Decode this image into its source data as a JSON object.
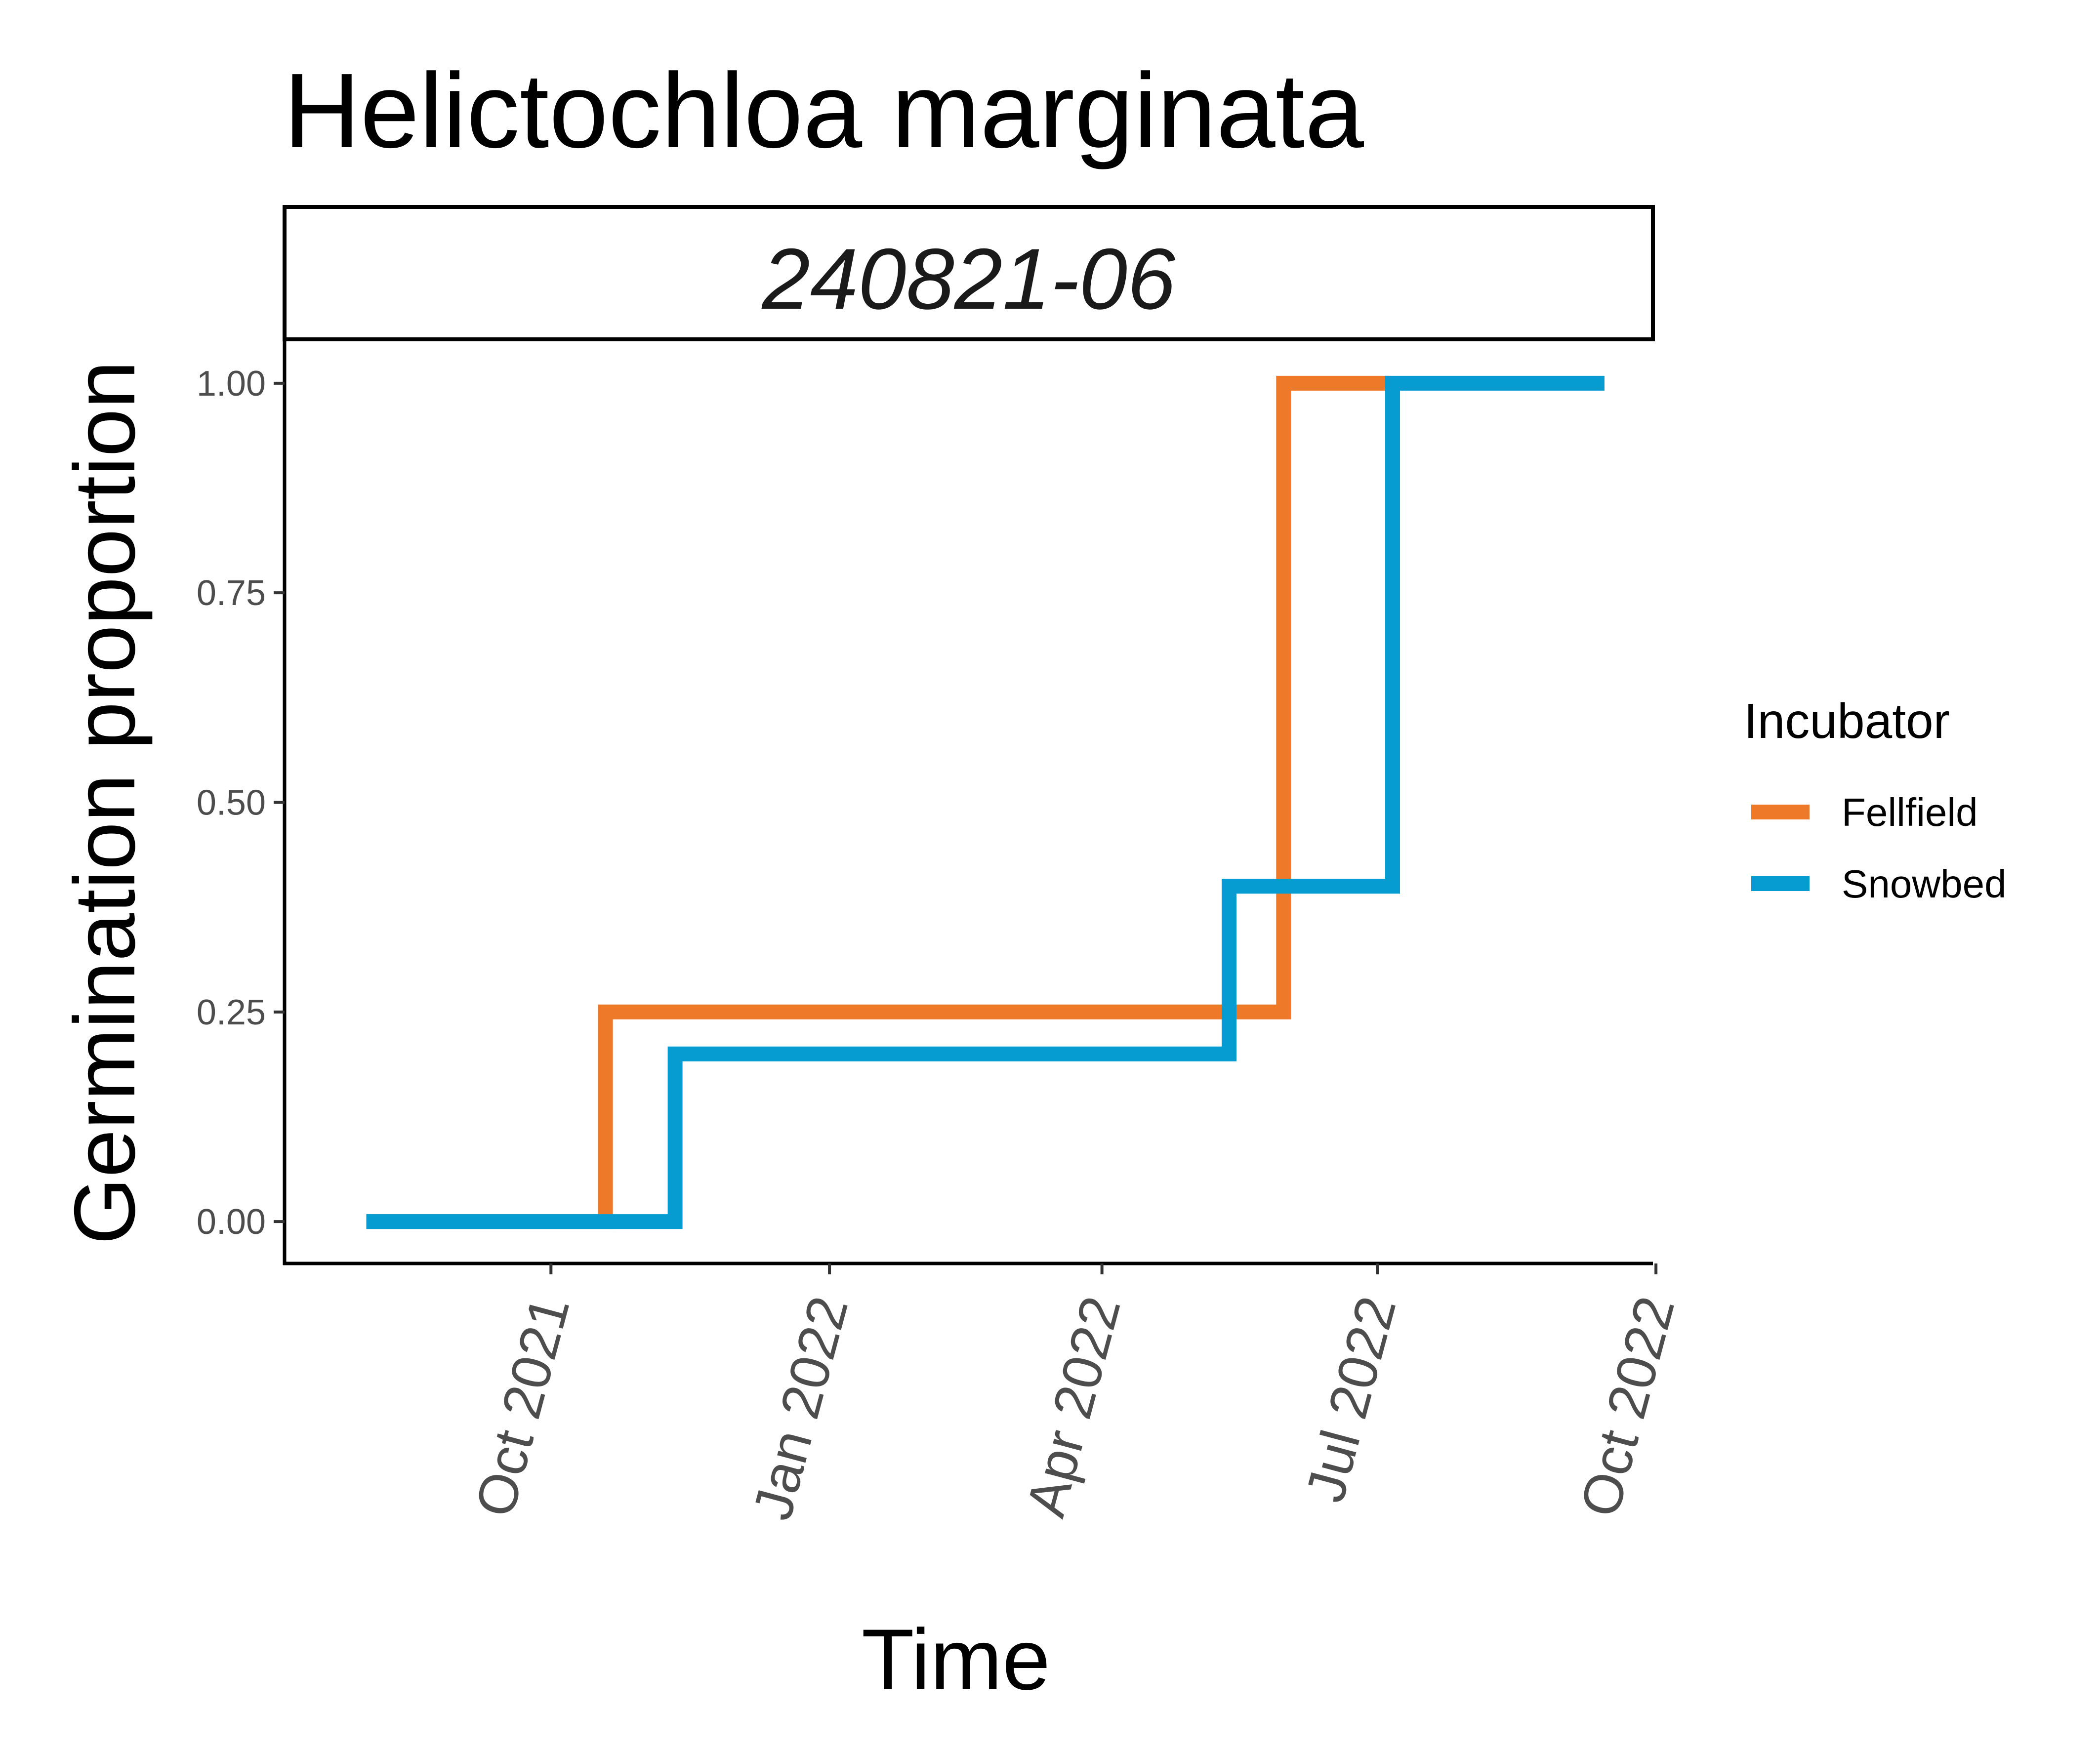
{
  "chart_data": {
    "type": "line",
    "subtype": "step",
    "title": "Helictochloa marginata",
    "facet_label": "240821-06",
    "xlabel": "Time",
    "ylabel": "Germination proportion",
    "x_is_date": true,
    "xlim": [
      "2021-07-05",
      "2022-09-30"
    ],
    "ylim": [
      -0.05,
      1.05
    ],
    "x_ticks": [
      {
        "date": "2021-10-01",
        "label": "Oct 2021"
      },
      {
        "date": "2022-01-01",
        "label": "Jan 2022"
      },
      {
        "date": "2022-04-01",
        "label": "Apr 2022"
      },
      {
        "date": "2022-07-01",
        "label": "Jul 2022"
      },
      {
        "date": "2022-10-01",
        "label": "Oct 2022"
      }
    ],
    "y_ticks": [
      {
        "value": 0.0,
        "label": "0.00"
      },
      {
        "value": 0.25,
        "label": "0.25"
      },
      {
        "value": 0.5,
        "label": "0.50"
      },
      {
        "value": 0.75,
        "label": "0.75"
      },
      {
        "value": 1.0,
        "label": "1.00"
      }
    ],
    "grid": false,
    "legend": {
      "title": "Incubator",
      "position": "right"
    },
    "series": [
      {
        "name": "Fellfield",
        "color": "#EE7A29",
        "points": [
          {
            "x": "2021-08-01",
            "y": 0.0
          },
          {
            "x": "2021-10-19",
            "y": 0.0
          },
          {
            "x": "2021-10-19",
            "y": 0.25
          },
          {
            "x": "2022-05-31",
            "y": 0.25
          },
          {
            "x": "2022-05-31",
            "y": 1.0
          },
          {
            "x": "2022-07-05",
            "y": 1.0
          }
        ]
      },
      {
        "name": "Snowbed",
        "color": "#069CD1",
        "points": [
          {
            "x": "2021-08-01",
            "y": 0.0
          },
          {
            "x": "2021-11-11",
            "y": 0.0
          },
          {
            "x": "2021-11-11",
            "y": 0.2
          },
          {
            "x": "2022-05-13",
            "y": 0.2
          },
          {
            "x": "2022-05-13",
            "y": 0.4
          },
          {
            "x": "2022-07-06",
            "y": 0.4
          },
          {
            "x": "2022-07-06",
            "y": 1.0
          },
          {
            "x": "2022-09-14",
            "y": 1.0
          }
        ]
      }
    ]
  }
}
